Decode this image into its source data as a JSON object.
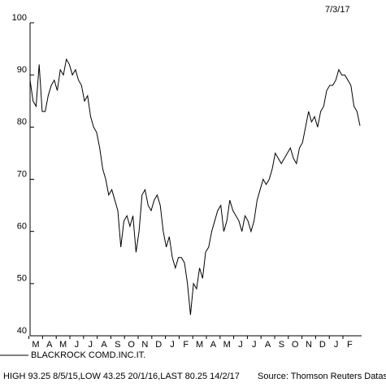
{
  "chart_data": {
    "type": "line",
    "date": "7/3/17",
    "name": "BLACKROCK COMD.INC.IT.",
    "stats": "HIGH 93.25 8/5/15,LOW 43.25 20/1/16,LAST 80.25 14/2/17",
    "source": "Source: Thomson Reuters Datastream",
    "month_labels": [
      "M",
      "A",
      "M",
      "J",
      "J",
      "A",
      "S",
      "O",
      "N",
      "D",
      "J",
      "F",
      "M",
      "A",
      "M",
      "J",
      "J",
      "A",
      "S",
      "O",
      "N",
      "D",
      "J",
      "F"
    ],
    "values": [
      89,
      85,
      84,
      92,
      83,
      83,
      86,
      88,
      89,
      87,
      91,
      90,
      93,
      92,
      90,
      91,
      89,
      88,
      85,
      86,
      82,
      80,
      79,
      76,
      72,
      70,
      67,
      68,
      66,
      64,
      57,
      62,
      63,
      61,
      63,
      56,
      60,
      67,
      68,
      65,
      64,
      66,
      67,
      65,
      60,
      57,
      59,
      55,
      53,
      55,
      55,
      54,
      50,
      44,
      50,
      49,
      53,
      51,
      56,
      57,
      60,
      62,
      64,
      65,
      60,
      62,
      66,
      64,
      63,
      62,
      60,
      63,
      62,
      60,
      62,
      66,
      68,
      70,
      69,
      70,
      72,
      75,
      74,
      73,
      74,
      75,
      76,
      74,
      73,
      76,
      77,
      80,
      83,
      81,
      82,
      80,
      83,
      84,
      87,
      88,
      88,
      89,
      91,
      90,
      90,
      89,
      88,
      84,
      83,
      80.25
    ],
    "color": "#000000",
    "ylim": [
      40,
      100
    ],
    "yticks": [
      40,
      50,
      60,
      70,
      80,
      90,
      100
    ]
  }
}
